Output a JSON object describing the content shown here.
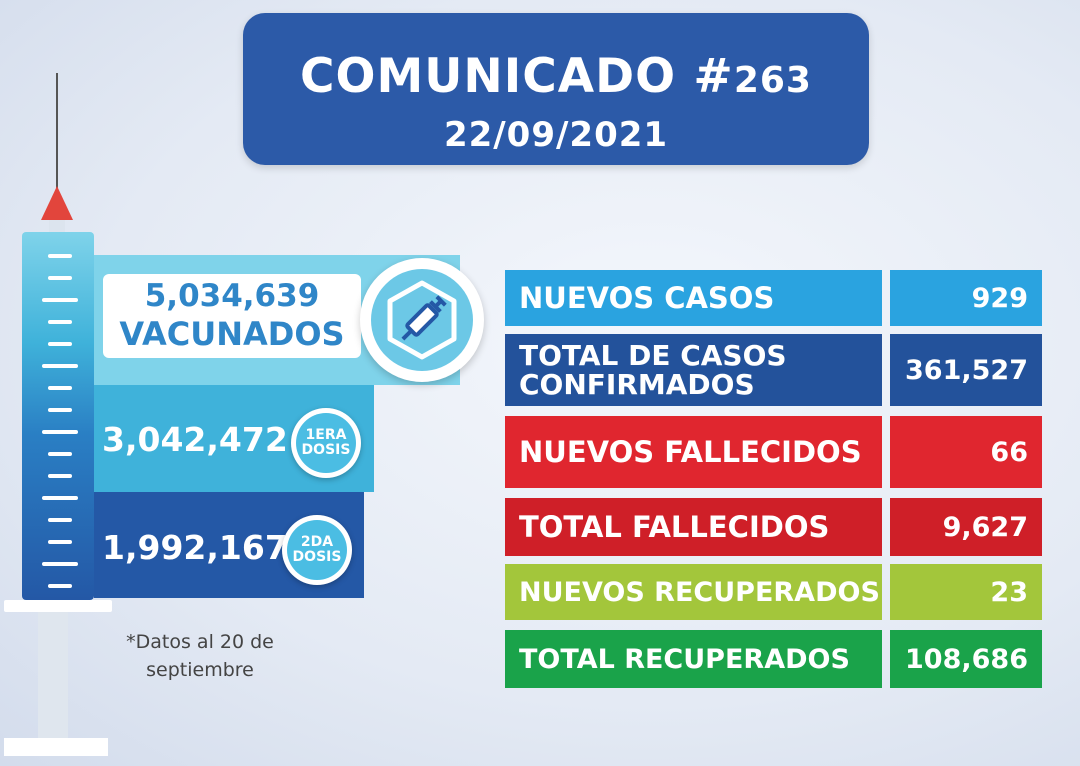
{
  "header": {
    "title": "COMUNICADO #",
    "number": "263",
    "date": "22/09/2021"
  },
  "vaccination": {
    "total_value": "5,034,639",
    "total_label": "VACUNADOS",
    "first_dose_value": "3,042,472",
    "first_dose_badge_line1": "1ERA",
    "first_dose_badge_line2": "DOSIS",
    "second_dose_value": "1,992,167",
    "second_dose_badge_line1": "2DA",
    "second_dose_badge_line2": "DOSIS",
    "note": "*Datos al 20 de septiembre",
    "icon": "syringe-icon"
  },
  "stats": [
    {
      "label": "NUEVOS CASOS",
      "value": "929",
      "label_color": "#2aa3e0",
      "value_color": "#2aa3e0"
    },
    {
      "label": "TOTAL DE CASOS CONFIRMADOS",
      "value": "361,527",
      "label_color": "#23529b",
      "value_color": "#23529b"
    },
    {
      "label": "NUEVOS FALLECIDOS",
      "value": "66",
      "label_color": "#e0262f",
      "value_color": "#e0262f"
    },
    {
      "label": "TOTAL FALLECIDOS",
      "value": "9,627",
      "label_color": "#cf1f28",
      "value_color": "#cf1f28"
    },
    {
      "label": "NUEVOS RECUPERADOS",
      "value": "23",
      "label_color": "#a3c63b",
      "value_color": "#a3c63b"
    },
    {
      "label": "TOTAL RECUPERADOS",
      "value": "108,686",
      "label_color": "#1aa34a",
      "value_color": "#1aa34a"
    }
  ]
}
